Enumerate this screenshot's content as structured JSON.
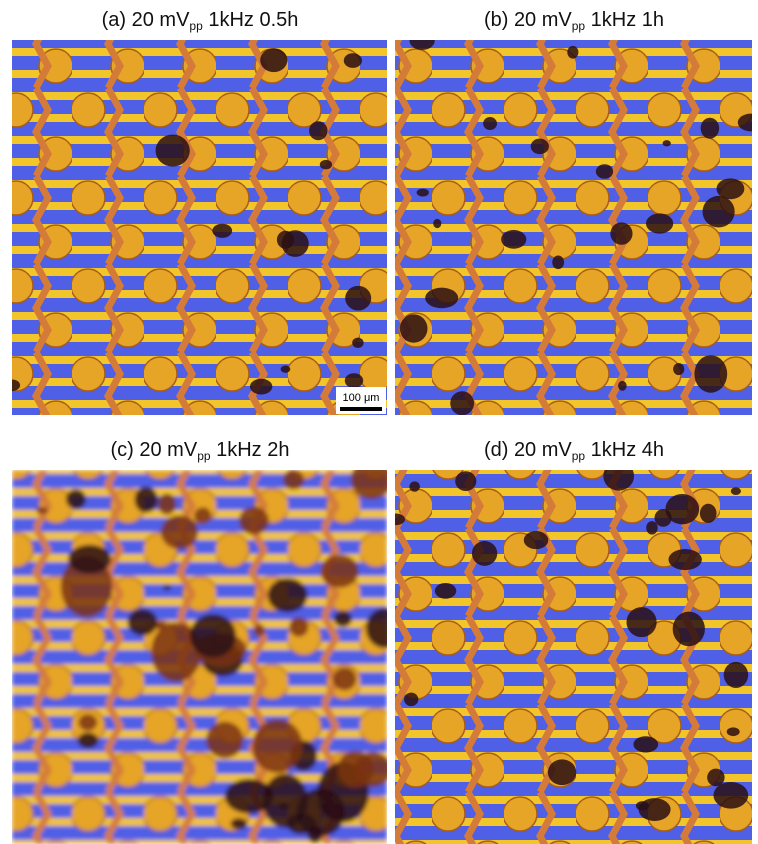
{
  "panels": [
    {
      "title": {
        "prefix": "(a) 20 mV",
        "subscript": "pp",
        "suffix": " 1kHz 0.5h"
      },
      "scale_bar": "100 μm"
    },
    {
      "title": {
        "prefix": "(b) 20 mV",
        "subscript": "pp",
        "suffix": " 1kHz 1h"
      }
    },
    {
      "title": {
        "prefix": "(c) 20 mV",
        "subscript": "pp",
        "suffix": " 1kHz 2h"
      }
    },
    {
      "title": {
        "prefix": "(d) 20 mV",
        "subscript": "pp",
        "suffix": " 1kHz 4h"
      }
    }
  ]
}
